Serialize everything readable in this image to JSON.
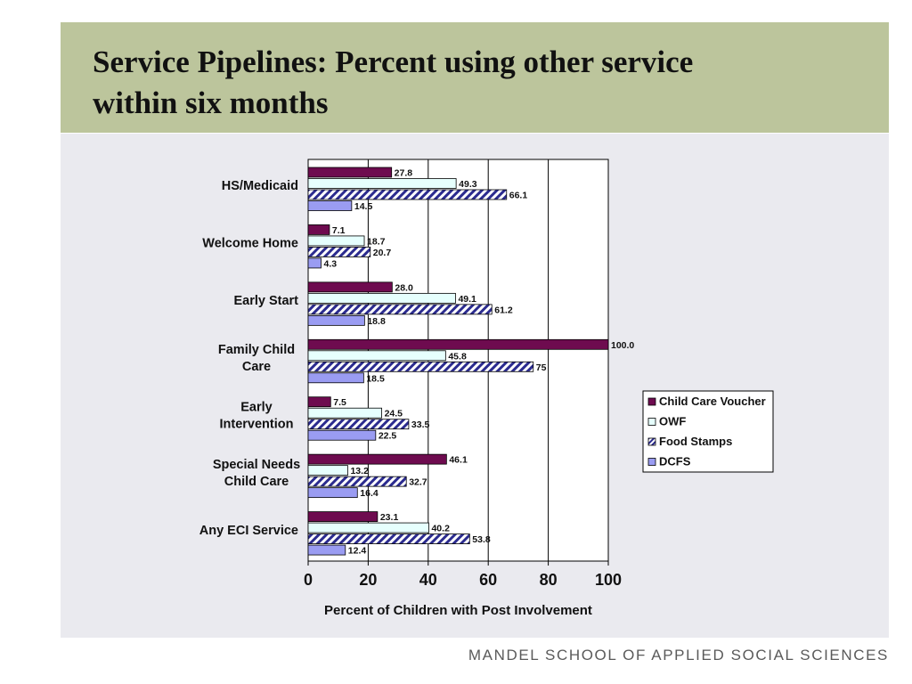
{
  "slide": {
    "title_line1": "Service Pipelines: Percent using other service",
    "title_line2": "within six months",
    "footer": "MANDEL SCHOOL OF APPLIED SOCIAL SCIENCES"
  },
  "colors": {
    "title_band": "#bcc59c",
    "panel": "#eaeaef",
    "child_care_voucher": "#6e0b4f",
    "owf": "#e6fffd",
    "food_stamps_stripe": "#2b2b8f",
    "dcfs": "#9a9cf2"
  },
  "chart_data": {
    "type": "bar",
    "orientation": "horizontal",
    "title": "",
    "xlabel": "Percent of Children with Post Involvement",
    "ylabel": "",
    "xlim": [
      0,
      100
    ],
    "x_ticks": [
      0,
      20,
      40,
      60,
      80,
      100
    ],
    "grid": "vertical gridlines at each x tick",
    "legend_position": "right",
    "categories": [
      [
        "HS/Medicaid"
      ],
      [
        "Welcome Home"
      ],
      [
        "Early Start"
      ],
      [
        "Family Child",
        "Care"
      ],
      [
        "Early",
        "Intervention"
      ],
      [
        "Special Needs",
        "Child Care"
      ],
      [
        "Any ECI Service"
      ]
    ],
    "series": [
      {
        "name": "Child Care Voucher",
        "fill": "solid",
        "color": "#6e0b4f",
        "values": [
          27.8,
          7.1,
          28.0,
          100.0,
          7.5,
          46.1,
          23.1
        ],
        "labels": [
          "27.8",
          "7.1",
          "28.0",
          "100.0",
          "7.5",
          "46.1",
          "23.1"
        ]
      },
      {
        "name": "OWF",
        "fill": "solid",
        "color": "#e6fffd",
        "values": [
          49.3,
          18.7,
          49.1,
          45.8,
          24.5,
          13.2,
          40.2
        ],
        "labels": [
          "49.3",
          "18.7",
          "49.1",
          "45.8",
          "24.5",
          "13.2",
          "40.2"
        ]
      },
      {
        "name": "Food Stamps",
        "fill": "hatched",
        "color": "#2b2b8f",
        "values": [
          66.1,
          20.7,
          61.2,
          75,
          33.5,
          32.7,
          53.8
        ],
        "labels": [
          "66.1",
          "20.7",
          "61.2",
          "75",
          "33.5",
          "32.7",
          "53.8"
        ]
      },
      {
        "name": "DCFS",
        "fill": "solid",
        "color": "#9a9cf2",
        "values": [
          14.5,
          4.3,
          18.8,
          18.5,
          22.5,
          16.4,
          12.4
        ],
        "labels": [
          "14.5",
          "4.3",
          "18.8",
          "18.5",
          "22.5",
          "16.4",
          "12.4"
        ]
      }
    ]
  }
}
